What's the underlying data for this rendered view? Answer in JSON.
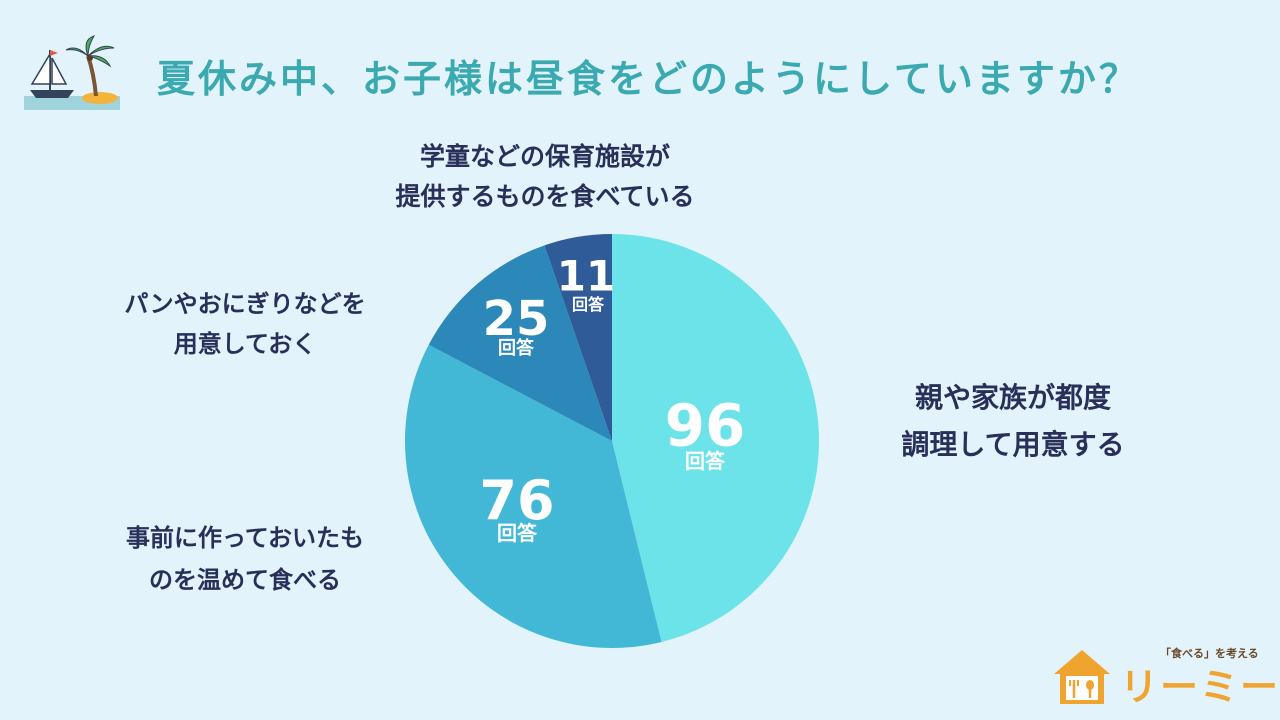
{
  "header": {
    "title": "夏休み中、お子様は昼食をどのようにしていますか？",
    "icon": "island-sailboat-icon"
  },
  "chart_data": {
    "type": "pie",
    "unit_label": "回答",
    "slices": [
      {
        "label_lines": [
          "親や家族が都度",
          "調理して用意する"
        ],
        "value": 96,
        "color": "#6ce3e8"
      },
      {
        "label_lines": [
          "事前に作っておいたも",
          "のを温めて食べる"
        ],
        "value": 76,
        "color": "#42b8d6"
      },
      {
        "label_lines": [
          "パンやおにぎりなどを",
          "用意しておく"
        ],
        "value": 25,
        "color": "#2c88b8"
      },
      {
        "label_lines": [
          "学童などの保育施設が",
          "提供するものを食べている"
        ],
        "value": 11,
        "color": "#2f5b98"
      }
    ]
  },
  "logo": {
    "tagline": "「食べる」を考える",
    "name": "リーミー",
    "icon": "house-fork-spoon-icon"
  }
}
